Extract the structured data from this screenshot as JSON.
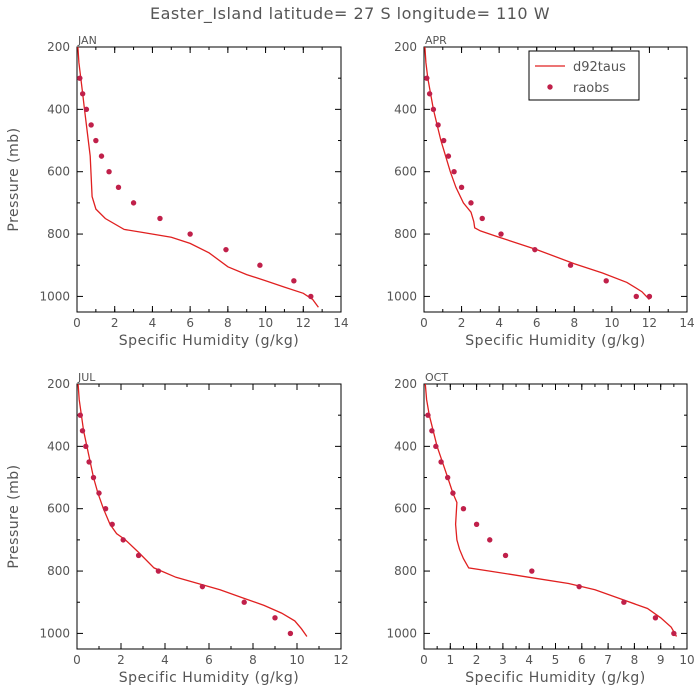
{
  "figure": {
    "title": "Easter_Island  latitude= 27 S longitude= 110 W"
  },
  "legend": {
    "model_label": "d92taus",
    "obs_label": "raobs"
  },
  "colors": {
    "model": "#e02020",
    "obs": "#c0204a",
    "axis": "#000000",
    "text": "#555555"
  },
  "chart_data": [
    {
      "type": "line",
      "panel": "JAN",
      "xlabel": "Specific Humidity (g/kg)",
      "ylabel": "Pressure (mb)",
      "xlim": [
        0,
        14
      ],
      "ylim": [
        1050,
        200
      ],
      "xticks": [
        0,
        2,
        4,
        6,
        8,
        10,
        12,
        14
      ],
      "yticks": [
        200,
        400,
        600,
        800,
        1000
      ],
      "series": [
        {
          "name": "d92taus",
          "kind": "line",
          "x": [
            0.05,
            0.1,
            0.2,
            0.3,
            0.4,
            0.5,
            0.6,
            0.7,
            0.8,
            1.0,
            1.5,
            2.5,
            3.5,
            5.0,
            6.0,
            7.0,
            8.0,
            9.0,
            10.0,
            11.0,
            12.0,
            12.5,
            12.8
          ],
          "y": [
            200,
            250,
            300,
            350,
            400,
            450,
            500,
            550,
            680,
            720,
            750,
            785,
            795,
            810,
            830,
            860,
            905,
            930,
            950,
            970,
            990,
            1010,
            1035
          ]
        },
        {
          "name": "raobs",
          "kind": "points",
          "x": [
            0.15,
            0.3,
            0.5,
            0.75,
            1.0,
            1.3,
            1.7,
            2.2,
            3.0,
            4.4,
            6.0,
            7.9,
            9.7,
            11.5,
            12.4
          ],
          "y": [
            300,
            350,
            400,
            450,
            500,
            550,
            600,
            650,
            700,
            750,
            800,
            850,
            900,
            950,
            1000
          ]
        }
      ]
    },
    {
      "type": "line",
      "panel": "APR",
      "xlabel": "Specific Humidity (g/kg)",
      "ylabel": "",
      "xlim": [
        0,
        14
      ],
      "ylim": [
        1050,
        200
      ],
      "xticks": [
        0,
        2,
        4,
        6,
        8,
        10,
        12,
        14
      ],
      "yticks": [
        200,
        400,
        600,
        800,
        1000
      ],
      "series": [
        {
          "name": "d92taus",
          "kind": "line",
          "x": [
            0.05,
            0.1,
            0.2,
            0.35,
            0.5,
            0.7,
            0.9,
            1.15,
            1.4,
            1.7,
            2.1,
            2.5,
            2.65,
            2.7,
            3.0,
            4.0,
            6.0,
            8.0,
            9.5,
            10.8,
            11.6,
            12.0
          ],
          "y": [
            200,
            250,
            300,
            350,
            400,
            450,
            500,
            550,
            600,
            650,
            700,
            730,
            760,
            780,
            790,
            810,
            850,
            895,
            925,
            955,
            985,
            1010
          ]
        },
        {
          "name": "raobs",
          "kind": "points",
          "x": [
            0.15,
            0.3,
            0.5,
            0.75,
            1.05,
            1.3,
            1.6,
            2.0,
            2.5,
            3.1,
            4.1,
            5.9,
            7.8,
            9.7,
            11.3,
            12.0
          ],
          "y": [
            300,
            350,
            400,
            450,
            500,
            550,
            600,
            650,
            700,
            750,
            800,
            850,
            900,
            950,
            1000,
            1000
          ]
        }
      ]
    },
    {
      "type": "line",
      "panel": "JUL",
      "xlabel": "Specific Humidity (g/kg)",
      "ylabel": "Pressure (mb)",
      "xlim": [
        0,
        12
      ],
      "ylim": [
        1050,
        200
      ],
      "xticks": [
        0,
        2,
        4,
        6,
        8,
        10,
        12
      ],
      "yticks": [
        200,
        400,
        600,
        800,
        1000
      ],
      "series": [
        {
          "name": "d92taus",
          "kind": "line",
          "x": [
            0.05,
            0.1,
            0.2,
            0.3,
            0.45,
            0.6,
            0.75,
            0.95,
            1.2,
            1.5,
            1.8,
            2.2,
            2.8,
            3.5,
            4.5,
            5.5,
            6.5,
            7.5,
            8.5,
            9.3,
            9.9,
            10.2,
            10.45
          ],
          "y": [
            200,
            250,
            300,
            350,
            400,
            450,
            500,
            550,
            600,
            650,
            680,
            700,
            740,
            790,
            820,
            840,
            860,
            885,
            910,
            935,
            960,
            985,
            1010
          ]
        },
        {
          "name": "raobs",
          "kind": "points",
          "x": [
            0.15,
            0.25,
            0.4,
            0.55,
            0.75,
            1.0,
            1.3,
            1.6,
            2.1,
            2.8,
            3.7,
            5.7,
            7.6,
            9.0,
            9.7
          ],
          "y": [
            300,
            350,
            400,
            450,
            500,
            550,
            600,
            650,
            700,
            750,
            800,
            850,
            900,
            950,
            1000
          ]
        }
      ]
    },
    {
      "type": "line",
      "panel": "OCT",
      "xlabel": "Specific Humidity (g/kg)",
      "ylabel": "",
      "xlim": [
        0,
        10
      ],
      "ylim": [
        1050,
        200
      ],
      "xticks": [
        0,
        1,
        2,
        3,
        4,
        5,
        6,
        7,
        8,
        9,
        10
      ],
      "yticks": [
        200,
        400,
        600,
        800,
        1000
      ],
      "series": [
        {
          "name": "d92taus",
          "kind": "line",
          "x": [
            0.05,
            0.1,
            0.2,
            0.35,
            0.5,
            0.7,
            0.9,
            1.1,
            1.25,
            1.2,
            1.25,
            1.35,
            1.5,
            1.7,
            2.5,
            4.0,
            5.5,
            6.5,
            7.5,
            8.5,
            9.0,
            9.4,
            9.6
          ],
          "y": [
            200,
            250,
            300,
            350,
            400,
            450,
            500,
            550,
            580,
            650,
            700,
            730,
            760,
            790,
            800,
            820,
            840,
            860,
            890,
            920,
            950,
            980,
            1010
          ]
        },
        {
          "name": "raobs",
          "kind": "points",
          "x": [
            0.15,
            0.3,
            0.45,
            0.65,
            0.9,
            1.1,
            1.5,
            2.0,
            2.5,
            3.1,
            4.1,
            5.9,
            7.6,
            8.8,
            9.5
          ],
          "y": [
            300,
            350,
            400,
            450,
            500,
            550,
            600,
            650,
            700,
            750,
            800,
            850,
            900,
            950,
            1000
          ]
        }
      ]
    }
  ]
}
